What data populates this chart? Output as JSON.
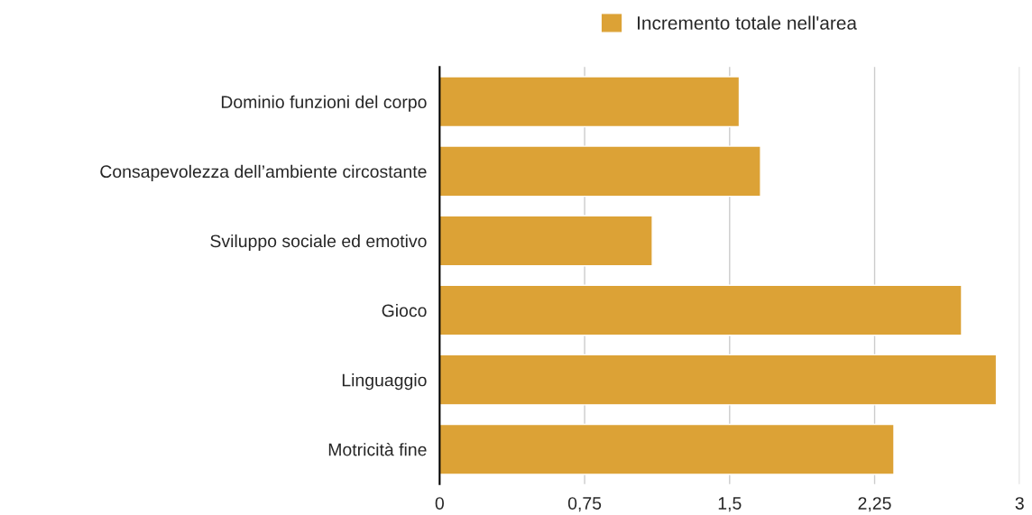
{
  "chart_data": {
    "type": "bar",
    "orientation": "horizontal",
    "categories": [
      "Dominio funzioni del corpo",
      "Consapevolezza dell’ambiente circostante",
      "Sviluppo sociale ed emotivo",
      "Gioco",
      "Linguaggio",
      "Motricità fine"
    ],
    "series": [
      {
        "name": "Incremento totale nell'area",
        "color": "#dca236",
        "values": [
          1.55,
          1.66,
          1.1,
          2.7,
          2.88,
          2.35
        ]
      }
    ],
    "xlim": [
      0,
      3
    ],
    "xticks": [
      0,
      {
        "value": 0.75,
        "label": "0,75"
      },
      {
        "value": 1.5,
        "label": "1,5"
      },
      {
        "value": 2.25,
        "label": "2,25"
      },
      3
    ],
    "grid": "x",
    "legend": "top"
  }
}
